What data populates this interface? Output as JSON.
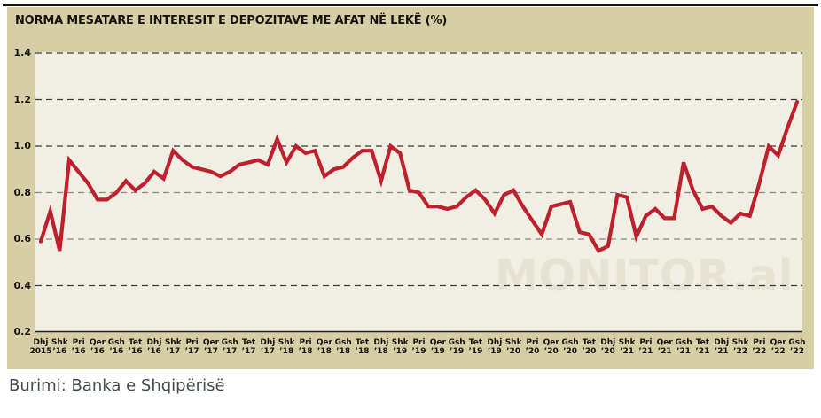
{
  "title": "NORMA MESATARE E INTERESIT E DEPOZITAVE ME AFAT NË LEKË (%)",
  "source": "Burimi: Banka e Shqipërisë",
  "watermark": "MONITOR.al",
  "colors": {
    "card_bg": "#d6cea4",
    "plot_bg": "#f1eee4",
    "line": "#be202d",
    "grid_dark": "#3c3a32",
    "grid_light": "#8c8b80",
    "axis": "#26231c",
    "watermark": "#e7e3d3",
    "title_text": "#16130d",
    "source_text": "#434a51"
  },
  "chart_data": {
    "type": "line",
    "title": "NORMA MESATARE E INTERESIT E DEPOZITAVE ME AFAT NË LEKË (%)",
    "ylim": [
      0.2,
      1.4
    ],
    "grid": "dashed horizontal",
    "y_ticks": [
      {
        "label": "1.4",
        "value": 1.4,
        "grid": "dark"
      },
      {
        "label": "1.2",
        "value": 1.2,
        "grid": "dark"
      },
      {
        "label": "1.0",
        "value": 1.0,
        "grid": "dark"
      },
      {
        "label": "0.8",
        "value": 0.8,
        "grid": "light"
      },
      {
        "label": "0.6",
        "value": 0.6,
        "grid": "light"
      },
      {
        "label": "0.4",
        "value": 0.4,
        "grid": "dark"
      },
      {
        "label": "0.2",
        "value": 0.2,
        "grid": "axis"
      }
    ],
    "months_per_x_tick": 2,
    "x_tick_labels": [
      [
        "Dhj",
        "2015"
      ],
      [
        "Shk",
        "’16"
      ],
      [
        "Pri",
        "’16"
      ],
      [
        "Qer",
        "’16"
      ],
      [
        "Gsh",
        "’16"
      ],
      [
        "Tet",
        "’16"
      ],
      [
        "Dhj",
        "’16"
      ],
      [
        "Shk",
        "’17"
      ],
      [
        "Pri",
        "’17"
      ],
      [
        "Qer",
        "’17"
      ],
      [
        "Gsh",
        "’17"
      ],
      [
        "Tet",
        "’17"
      ],
      [
        "Dhj",
        "’17"
      ],
      [
        "Shk",
        "’18"
      ],
      [
        "Pri",
        "’18"
      ],
      [
        "Qer",
        "’18"
      ],
      [
        "Gsh",
        "’18"
      ],
      [
        "Tet",
        "’18"
      ],
      [
        "Dhj",
        "’18"
      ],
      [
        "Shk",
        "’19"
      ],
      [
        "Pri",
        "’19"
      ],
      [
        "Qer",
        "’19"
      ],
      [
        "Gsh",
        "’19"
      ],
      [
        "Tet",
        "’19"
      ],
      [
        "Dhj",
        "’19"
      ],
      [
        "Shk",
        "’20"
      ],
      [
        "Pri",
        "’20"
      ],
      [
        "Qer",
        "’20"
      ],
      [
        "Gsh",
        "’20"
      ],
      [
        "Tet",
        "’20"
      ],
      [
        "Dhj",
        "’20"
      ],
      [
        "Shk",
        "’21"
      ],
      [
        "Pri",
        "’21"
      ],
      [
        "Qer",
        "’21"
      ],
      [
        "Gsh",
        "’21"
      ],
      [
        "Tet",
        "’21"
      ],
      [
        "Dhj",
        "’21"
      ],
      [
        "Shk",
        "’22"
      ],
      [
        "Pri",
        "’22"
      ],
      [
        "Qer",
        "’22"
      ],
      [
        "Gsh",
        "’22"
      ]
    ],
    "series": [
      {
        "color": "#be202d",
        "values": [
          0.59,
          0.72,
          0.55,
          0.94,
          0.89,
          0.84,
          0.77,
          0.77,
          0.8,
          0.85,
          0.81,
          0.84,
          0.89,
          0.86,
          0.98,
          0.94,
          0.91,
          0.9,
          0.89,
          0.87,
          0.89,
          0.92,
          0.93,
          0.94,
          0.92,
          1.03,
          0.93,
          1.0,
          0.97,
          0.98,
          0.87,
          0.9,
          0.91,
          0.95,
          0.98,
          0.98,
          0.85,
          1.0,
          0.97,
          0.81,
          0.8,
          0.74,
          0.74,
          0.73,
          0.74,
          0.78,
          0.81,
          0.77,
          0.71,
          0.79,
          0.81,
          0.74,
          0.68,
          0.62,
          0.74,
          0.75,
          0.76,
          0.63,
          0.62,
          0.55,
          0.57,
          0.79,
          0.78,
          0.61,
          0.7,
          0.73,
          0.69,
          0.69,
          0.93,
          0.81,
          0.73,
          0.74,
          0.7,
          0.67,
          0.71,
          0.7,
          0.84,
          1.0,
          0.96,
          1.08,
          1.19
        ]
      }
    ]
  }
}
